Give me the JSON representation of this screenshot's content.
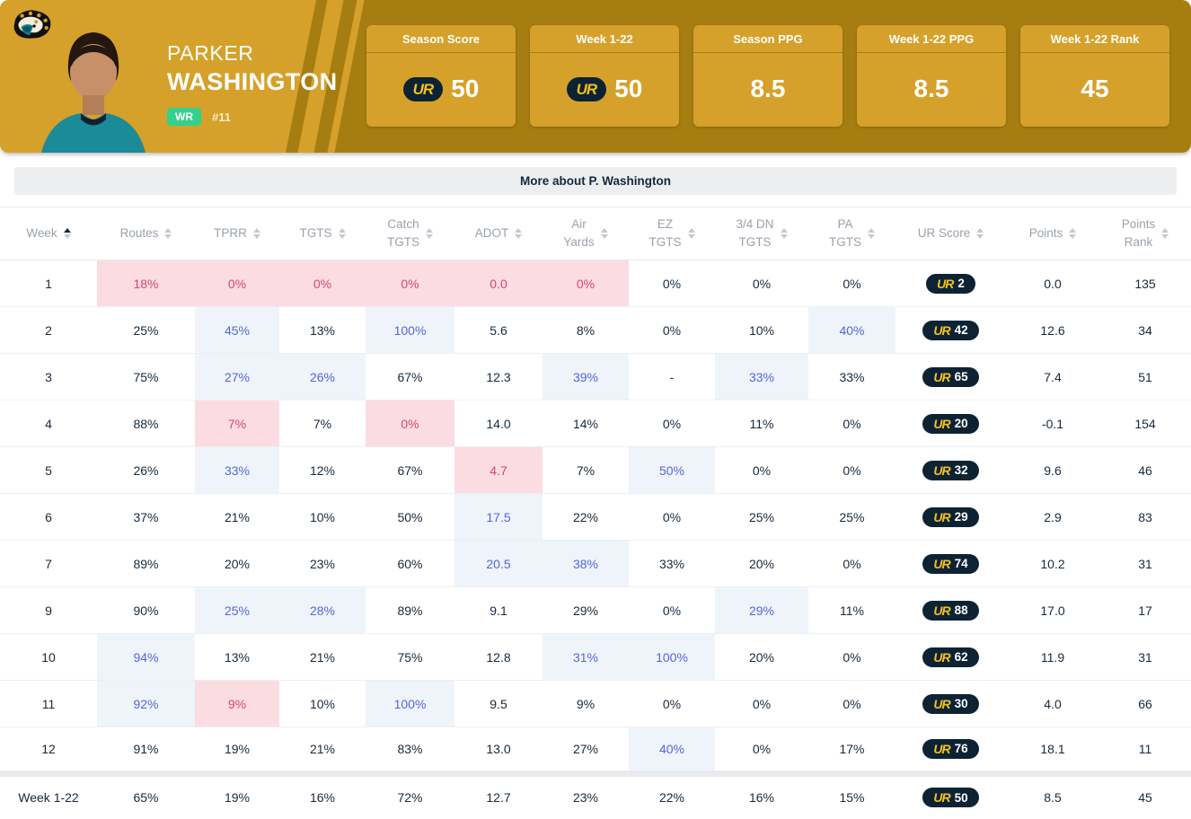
{
  "brand": {
    "ur_logo": "UR"
  },
  "team": {
    "name": "Jacksonville Jaguars",
    "logo": "jaguars-logo"
  },
  "player": {
    "first_name": "PARKER",
    "last_name": "WASHINGTON",
    "position": "WR",
    "jersey_number": "#11"
  },
  "stat_cards": [
    {
      "label": "Season Score",
      "value": "50",
      "ur_badge": true
    },
    {
      "label": "Week 1-22",
      "value": "50",
      "ur_badge": true
    },
    {
      "label": "Season PPG",
      "value": "8.5",
      "ur_badge": false
    },
    {
      "label": "Week 1-22 PPG",
      "value": "8.5",
      "ur_badge": false
    },
    {
      "label": "Week 1-22 Rank",
      "value": "45",
      "ur_badge": false
    }
  ],
  "more_about_label": "More about P. Washington",
  "colors": {
    "banner_gold_light": "#D5A12B",
    "banner_gold_dark": "#A67D10",
    "ur_navy": "#0D2334",
    "ur_gold": "#F2C01D",
    "position_badge_green": "#34D08D",
    "good_text_blue": "#5566D9",
    "good_bg_blue": "#EEF4FA",
    "bad_text_red": "#D6486B",
    "bad_bg_pink": "#FBDCE3"
  },
  "table": {
    "columns": [
      {
        "key": "week",
        "label": [
          "Week"
        ],
        "sorted": "asc"
      },
      {
        "key": "routes",
        "label": [
          "Routes"
        ]
      },
      {
        "key": "tprr",
        "label": [
          "TPRR"
        ]
      },
      {
        "key": "tgts",
        "label": [
          "TGTS"
        ]
      },
      {
        "key": "catch_tgts",
        "label": [
          "Catch",
          "TGTS"
        ]
      },
      {
        "key": "adot",
        "label": [
          "ADOT"
        ]
      },
      {
        "key": "air_yards",
        "label": [
          "Air",
          "Yards"
        ]
      },
      {
        "key": "ez_tgts",
        "label": [
          "EZ",
          "TGTS"
        ]
      },
      {
        "key": "dn34_tgts",
        "label": [
          "3/4 DN",
          "TGTS"
        ]
      },
      {
        "key": "pa_tgts",
        "label": [
          "PA",
          "TGTS"
        ]
      },
      {
        "key": "ur_score",
        "label": [
          "UR Score"
        ]
      },
      {
        "key": "points",
        "label": [
          "Points"
        ]
      },
      {
        "key": "points_rank",
        "label": [
          "Points",
          "Rank"
        ]
      }
    ],
    "rows": [
      {
        "week": "1",
        "routes": {
          "v": "18%",
          "h": "neg"
        },
        "tprr": {
          "v": "0%",
          "h": "neg"
        },
        "tgts": {
          "v": "0%",
          "h": "neg"
        },
        "catch_tgts": {
          "v": "0%",
          "h": "neg"
        },
        "adot": {
          "v": "0.0",
          "h": "neg"
        },
        "air_yards": {
          "v": "0%",
          "h": "neg"
        },
        "ez_tgts": "0%",
        "dn34_tgts": "0%",
        "pa_tgts": "0%",
        "ur_score": "2",
        "points": "0.0",
        "points_rank": "135"
      },
      {
        "week": "2",
        "routes": "25%",
        "tprr": {
          "v": "45%",
          "h": "pos"
        },
        "tgts": "13%",
        "catch_tgts": {
          "v": "100%",
          "h": "pos"
        },
        "adot": "5.6",
        "air_yards": "8%",
        "ez_tgts": "0%",
        "dn34_tgts": "10%",
        "pa_tgts": {
          "v": "40%",
          "h": "pos"
        },
        "ur_score": "42",
        "points": "12.6",
        "points_rank": "34"
      },
      {
        "week": "3",
        "routes": "75%",
        "tprr": {
          "v": "27%",
          "h": "pos"
        },
        "tgts": {
          "v": "26%",
          "h": "pos"
        },
        "catch_tgts": "67%",
        "adot": "12.3",
        "air_yards": {
          "v": "39%",
          "h": "pos"
        },
        "ez_tgts": "-",
        "dn34_tgts": {
          "v": "33%",
          "h": "pos"
        },
        "pa_tgts": "33%",
        "ur_score": "65",
        "points": "7.4",
        "points_rank": "51"
      },
      {
        "week": "4",
        "routes": "88%",
        "tprr": {
          "v": "7%",
          "h": "neg"
        },
        "tgts": "7%",
        "catch_tgts": {
          "v": "0%",
          "h": "neg"
        },
        "adot": "14.0",
        "air_yards": "14%",
        "ez_tgts": "0%",
        "dn34_tgts": "11%",
        "pa_tgts": "0%",
        "ur_score": "20",
        "points": "-0.1",
        "points_rank": "154"
      },
      {
        "week": "5",
        "routes": "26%",
        "tprr": {
          "v": "33%",
          "h": "pos"
        },
        "tgts": "12%",
        "catch_tgts": "67%",
        "adot": {
          "v": "4.7",
          "h": "neg"
        },
        "air_yards": "7%",
        "ez_tgts": {
          "v": "50%",
          "h": "pos"
        },
        "dn34_tgts": "0%",
        "pa_tgts": "0%",
        "ur_score": "32",
        "points": "9.6",
        "points_rank": "46"
      },
      {
        "week": "6",
        "routes": "37%",
        "tprr": "21%",
        "tgts": "10%",
        "catch_tgts": "50%",
        "adot": {
          "v": "17.5",
          "h": "pos"
        },
        "air_yards": "22%",
        "ez_tgts": "0%",
        "dn34_tgts": "25%",
        "pa_tgts": "25%",
        "ur_score": "29",
        "points": "2.9",
        "points_rank": "83"
      },
      {
        "week": "7",
        "routes": "89%",
        "tprr": "20%",
        "tgts": "23%",
        "catch_tgts": "60%",
        "adot": {
          "v": "20.5",
          "h": "pos"
        },
        "air_yards": {
          "v": "38%",
          "h": "pos"
        },
        "ez_tgts": "33%",
        "dn34_tgts": "20%",
        "pa_tgts": "0%",
        "ur_score": "74",
        "points": "10.2",
        "points_rank": "31"
      },
      {
        "week": "9",
        "routes": "90%",
        "tprr": {
          "v": "25%",
          "h": "pos"
        },
        "tgts": {
          "v": "28%",
          "h": "pos"
        },
        "catch_tgts": "89%",
        "adot": "9.1",
        "air_yards": "29%",
        "ez_tgts": "0%",
        "dn34_tgts": {
          "v": "29%",
          "h": "pos"
        },
        "pa_tgts": "11%",
        "ur_score": "88",
        "points": "17.0",
        "points_rank": "17"
      },
      {
        "week": "10",
        "routes": {
          "v": "94%",
          "h": "pos"
        },
        "tprr": "13%",
        "tgts": "21%",
        "catch_tgts": "75%",
        "adot": "12.8",
        "air_yards": {
          "v": "31%",
          "h": "pos"
        },
        "ez_tgts": {
          "v": "100%",
          "h": "pos"
        },
        "dn34_tgts": "20%",
        "pa_tgts": "0%",
        "ur_score": "62",
        "points": "11.9",
        "points_rank": "31"
      },
      {
        "week": "11",
        "routes": {
          "v": "92%",
          "h": "pos"
        },
        "tprr": {
          "v": "9%",
          "h": "neg"
        },
        "tgts": "10%",
        "catch_tgts": {
          "v": "100%",
          "h": "pos"
        },
        "adot": "9.5",
        "air_yards": "9%",
        "ez_tgts": "0%",
        "dn34_tgts": "0%",
        "pa_tgts": "0%",
        "ur_score": "30",
        "points": "4.0",
        "points_rank": "66"
      },
      {
        "week": "12",
        "routes": "91%",
        "tprr": "19%",
        "tgts": "21%",
        "catch_tgts": "83%",
        "adot": "13.0",
        "air_yards": "27%",
        "ez_tgts": {
          "v": "40%",
          "h": "pos"
        },
        "dn34_tgts": "0%",
        "pa_tgts": "17%",
        "ur_score": "76",
        "points": "18.1",
        "points_rank": "11"
      }
    ],
    "footer": {
      "week": "Week 1-22",
      "routes": "65%",
      "tprr": "19%",
      "tgts": "16%",
      "catch_tgts": "72%",
      "adot": "12.7",
      "air_yards": "23%",
      "ez_tgts": "22%",
      "dn34_tgts": "16%",
      "pa_tgts": "15%",
      "ur_score": "50",
      "points": "8.5",
      "points_rank": "45"
    }
  }
}
